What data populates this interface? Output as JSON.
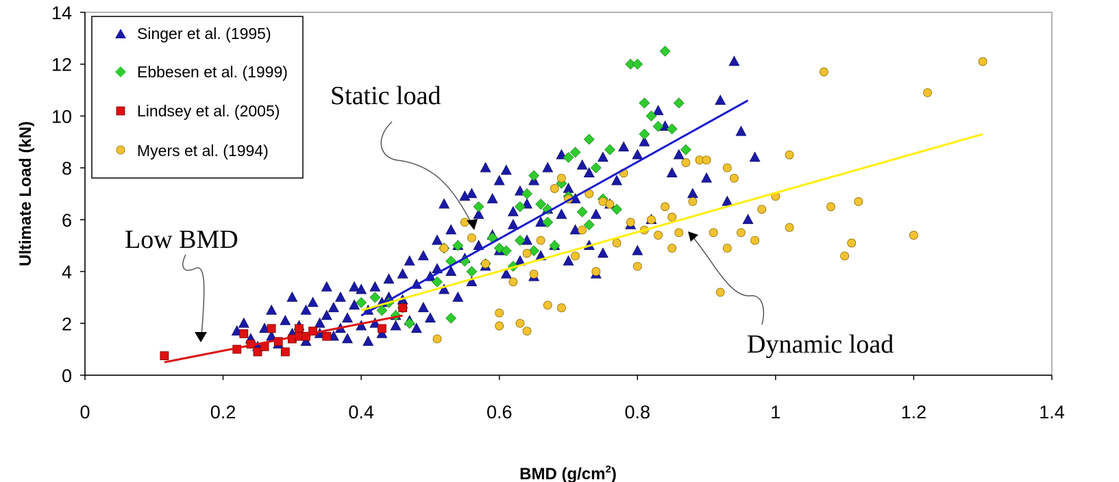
{
  "chart_data": {
    "type": "scatter",
    "xlabel": "BMD (g/cm",
    "xlabel_sup": "2",
    "xlabel_close": ")",
    "ylabel": "Ultimate Load (kN)",
    "xlim": [
      0,
      1.4
    ],
    "ylim": [
      0,
      14
    ],
    "xticks": [
      0,
      0.2,
      0.4,
      0.6,
      0.8,
      1,
      1.2,
      1.4
    ],
    "xtick_labels": [
      "0",
      "0.2",
      "0.4",
      "0.6",
      "0.8",
      "1",
      "1.2",
      "1.4"
    ],
    "yticks": [
      0,
      2,
      4,
      6,
      8,
      10,
      12,
      14
    ],
    "ytick_labels": [
      "0",
      "2",
      "4",
      "6",
      "8",
      "10",
      "12",
      "14"
    ],
    "grid": false,
    "legend_position": "top-left",
    "series": [
      {
        "name": "Singer et al. (1995)",
        "marker": "triangle",
        "color": "#1a1aa6",
        "points": [
          [
            0.22,
            1.7
          ],
          [
            0.23,
            2.0
          ],
          [
            0.24,
            1.4
          ],
          [
            0.25,
            1.1
          ],
          [
            0.26,
            1.8
          ],
          [
            0.27,
            1.5
          ],
          [
            0.27,
            2.5
          ],
          [
            0.28,
            1.2
          ],
          [
            0.29,
            2.1
          ],
          [
            0.3,
            1.6
          ],
          [
            0.3,
            3.0
          ],
          [
            0.31,
            1.9
          ],
          [
            0.32,
            2.5
          ],
          [
            0.32,
            1.3
          ],
          [
            0.33,
            2.8
          ],
          [
            0.34,
            1.6
          ],
          [
            0.34,
            2.0
          ],
          [
            0.35,
            3.4
          ],
          [
            0.35,
            2.3
          ],
          [
            0.36,
            1.5
          ],
          [
            0.36,
            2.6
          ],
          [
            0.37,
            3.0
          ],
          [
            0.37,
            1.8
          ],
          [
            0.38,
            2.2
          ],
          [
            0.38,
            1.4
          ],
          [
            0.39,
            3.4
          ],
          [
            0.39,
            2.7
          ],
          [
            0.4,
            1.9
          ],
          [
            0.4,
            3.3
          ],
          [
            0.41,
            2.5
          ],
          [
            0.41,
            1.3
          ],
          [
            0.42,
            3.4
          ],
          [
            0.42,
            2.0
          ],
          [
            0.43,
            2.8
          ],
          [
            0.43,
            1.6
          ],
          [
            0.44,
            3.0
          ],
          [
            0.44,
            3.7
          ],
          [
            0.45,
            2.3
          ],
          [
            0.45,
            1.9
          ],
          [
            0.46,
            3.9
          ],
          [
            0.46,
            2.9
          ],
          [
            0.47,
            4.4
          ],
          [
            0.47,
            2.1
          ],
          [
            0.48,
            3.5
          ],
          [
            0.48,
            1.8
          ],
          [
            0.49,
            4.6
          ],
          [
            0.49,
            2.6
          ],
          [
            0.5,
            3.8
          ],
          [
            0.5,
            2.2
          ],
          [
            0.51,
            5.2
          ],
          [
            0.51,
            4.1
          ],
          [
            0.52,
            3.3
          ],
          [
            0.52,
            6.6
          ],
          [
            0.53,
            5.6
          ],
          [
            0.53,
            4.0
          ],
          [
            0.54,
            3.0
          ],
          [
            0.54,
            5.0
          ],
          [
            0.55,
            6.9
          ],
          [
            0.55,
            4.5
          ],
          [
            0.56,
            7.0
          ],
          [
            0.56,
            3.6
          ],
          [
            0.57,
            6.2
          ],
          [
            0.57,
            5.0
          ],
          [
            0.58,
            8.0
          ],
          [
            0.58,
            4.2
          ],
          [
            0.59,
            6.8
          ],
          [
            0.59,
            5.4
          ],
          [
            0.6,
            7.5
          ],
          [
            0.6,
            4.8
          ],
          [
            0.61,
            7.9
          ],
          [
            0.61,
            3.9
          ],
          [
            0.62,
            6.3
          ],
          [
            0.62,
            5.8
          ],
          [
            0.63,
            7.1
          ],
          [
            0.63,
            4.4
          ],
          [
            0.64,
            6.6
          ],
          [
            0.64,
            5.2
          ],
          [
            0.65,
            7.5
          ],
          [
            0.65,
            3.8
          ],
          [
            0.66,
            5.9
          ],
          [
            0.66,
            4.6
          ],
          [
            0.67,
            6.4
          ],
          [
            0.67,
            8.0
          ],
          [
            0.68,
            5.0
          ],
          [
            0.69,
            8.5
          ],
          [
            0.69,
            6.2
          ],
          [
            0.7,
            7.2
          ],
          [
            0.7,
            4.4
          ],
          [
            0.71,
            5.6
          ],
          [
            0.71,
            6.8
          ],
          [
            0.72,
            8.1
          ],
          [
            0.73,
            5.0
          ],
          [
            0.73,
            7.8
          ],
          [
            0.74,
            3.9
          ],
          [
            0.74,
            6.2
          ],
          [
            0.75,
            8.4
          ],
          [
            0.75,
            4.7
          ],
          [
            0.76,
            6.6
          ],
          [
            0.77,
            7.5
          ],
          [
            0.78,
            8.8
          ],
          [
            0.79,
            5.8
          ],
          [
            0.8,
            8.5
          ],
          [
            0.81,
            9.0
          ],
          [
            0.82,
            6.0
          ],
          [
            0.83,
            10.2
          ],
          [
            0.84,
            9.6
          ],
          [
            0.85,
            7.8
          ],
          [
            0.86,
            8.5
          ],
          [
            0.88,
            7.0
          ],
          [
            0.9,
            7.6
          ],
          [
            0.92,
            10.6
          ],
          [
            0.93,
            6.7
          ],
          [
            0.94,
            12.1
          ],
          [
            0.95,
            9.4
          ],
          [
            0.96,
            6.0
          ],
          [
            0.97,
            8.4
          ],
          [
            0.8,
            4.8
          ]
        ]
      },
      {
        "name": "Ebbesen et al. (1999)",
        "marker": "diamond",
        "color": "#2ecc2e",
        "points": [
          [
            0.4,
            2.8
          ],
          [
            0.42,
            3.0
          ],
          [
            0.43,
            2.5
          ],
          [
            0.44,
            2.8
          ],
          [
            0.45,
            2.3
          ],
          [
            0.46,
            2.6
          ],
          [
            0.47,
            2.0
          ],
          [
            0.51,
            3.6
          ],
          [
            0.52,
            4.9
          ],
          [
            0.53,
            4.4
          ],
          [
            0.53,
            2.2
          ],
          [
            0.54,
            5.0
          ],
          [
            0.55,
            4.4
          ],
          [
            0.56,
            4.0
          ],
          [
            0.57,
            6.5
          ],
          [
            0.58,
            4.3
          ],
          [
            0.59,
            5.3
          ],
          [
            0.6,
            4.9
          ],
          [
            0.61,
            4.8
          ],
          [
            0.62,
            4.2
          ],
          [
            0.63,
            6.5
          ],
          [
            0.63,
            5.2
          ],
          [
            0.64,
            7.0
          ],
          [
            0.65,
            7.7
          ],
          [
            0.65,
            4.8
          ],
          [
            0.66,
            6.6
          ],
          [
            0.67,
            5.9
          ],
          [
            0.67,
            6.4
          ],
          [
            0.68,
            5.0
          ],
          [
            0.69,
            7.4
          ],
          [
            0.7,
            8.4
          ],
          [
            0.7,
            6.9
          ],
          [
            0.71,
            8.6
          ],
          [
            0.72,
            6.3
          ],
          [
            0.73,
            9.1
          ],
          [
            0.73,
            5.8
          ],
          [
            0.74,
            8.0
          ],
          [
            0.75,
            6.8
          ],
          [
            0.76,
            8.7
          ],
          [
            0.77,
            6.4
          ],
          [
            0.79,
            12.0
          ],
          [
            0.8,
            12.0
          ],
          [
            0.81,
            10.5
          ],
          [
            0.81,
            9.3
          ],
          [
            0.82,
            10.0
          ],
          [
            0.83,
            9.6
          ],
          [
            0.84,
            12.5
          ],
          [
            0.85,
            9.5
          ],
          [
            0.86,
            10.5
          ],
          [
            0.87,
            8.7
          ]
        ]
      },
      {
        "name": "Lindsey et al. (2005)",
        "marker": "square",
        "color": "#dd1111",
        "points": [
          [
            0.115,
            0.75
          ],
          [
            0.22,
            1.0
          ],
          [
            0.23,
            1.6
          ],
          [
            0.24,
            1.2
          ],
          [
            0.25,
            0.9
          ],
          [
            0.26,
            1.1
          ],
          [
            0.27,
            1.8
          ],
          [
            0.28,
            1.3
          ],
          [
            0.29,
            0.9
          ],
          [
            0.3,
            1.4
          ],
          [
            0.31,
            1.8
          ],
          [
            0.31,
            1.5
          ],
          [
            0.32,
            1.5
          ],
          [
            0.33,
            1.7
          ],
          [
            0.35,
            1.5
          ],
          [
            0.43,
            1.8
          ],
          [
            0.46,
            2.6
          ]
        ]
      },
      {
        "name": "Myers et al. (1994)",
        "marker": "circle",
        "color": "#f2c230",
        "points": [
          [
            0.51,
            1.4
          ],
          [
            0.52,
            4.9
          ],
          [
            0.55,
            5.9
          ],
          [
            0.56,
            5.3
          ],
          [
            0.58,
            4.3
          ],
          [
            0.6,
            1.9
          ],
          [
            0.6,
            2.4
          ],
          [
            0.62,
            3.6
          ],
          [
            0.63,
            2.0
          ],
          [
            0.64,
            1.7
          ],
          [
            0.64,
            4.7
          ],
          [
            0.65,
            3.9
          ],
          [
            0.66,
            5.2
          ],
          [
            0.67,
            2.7
          ],
          [
            0.68,
            7.2
          ],
          [
            0.69,
            2.6
          ],
          [
            0.69,
            7.6
          ],
          [
            0.7,
            6.8
          ],
          [
            0.71,
            4.6
          ],
          [
            0.72,
            5.6
          ],
          [
            0.73,
            7.0
          ],
          [
            0.74,
            4.0
          ],
          [
            0.75,
            6.7
          ],
          [
            0.76,
            6.6
          ],
          [
            0.77,
            5.1
          ],
          [
            0.78,
            7.8
          ],
          [
            0.79,
            5.9
          ],
          [
            0.8,
            4.2
          ],
          [
            0.81,
            5.6
          ],
          [
            0.82,
            6.0
          ],
          [
            0.83,
            5.4
          ],
          [
            0.84,
            6.5
          ],
          [
            0.85,
            6.1
          ],
          [
            0.85,
            4.9
          ],
          [
            0.86,
            5.5
          ],
          [
            0.87,
            8.2
          ],
          [
            0.88,
            6.7
          ],
          [
            0.89,
            8.3
          ],
          [
            0.9,
            8.3
          ],
          [
            0.91,
            5.5
          ],
          [
            0.92,
            3.2
          ],
          [
            0.93,
            4.9
          ],
          [
            0.93,
            8.0
          ],
          [
            0.94,
            7.6
          ],
          [
            0.95,
            5.5
          ],
          [
            0.97,
            5.2
          ],
          [
            0.98,
            6.4
          ],
          [
            1.0,
            6.9
          ],
          [
            1.02,
            8.5
          ],
          [
            1.02,
            5.7
          ],
          [
            1.07,
            11.7
          ],
          [
            1.08,
            6.5
          ],
          [
            1.1,
            4.6
          ],
          [
            1.11,
            5.1
          ],
          [
            1.12,
            6.7
          ],
          [
            1.2,
            5.4
          ],
          [
            1.22,
            10.9
          ],
          [
            1.3,
            12.1
          ]
        ]
      }
    ],
    "fit_lines": [
      {
        "name": "Singer fit",
        "color": "#1a1acc",
        "x": [
          0.4,
          0.96
        ],
        "y": [
          2.3,
          10.6
        ]
      },
      {
        "name": "Myers fit",
        "color": "#ffee00",
        "x": [
          0.4,
          1.3
        ],
        "y": [
          2.5,
          9.3
        ]
      },
      {
        "name": "Lindsey fit",
        "color": "#dd1111",
        "x": [
          0.115,
          0.46
        ],
        "y": [
          0.5,
          2.3
        ]
      }
    ],
    "annotations": [
      {
        "text": "Static load",
        "pointer_target": [
          0.57,
          5.3
        ]
      },
      {
        "text": "Low BMD",
        "pointer_target": [
          0.165,
          0.9
        ]
      },
      {
        "text": "Dynamic load",
        "pointer_target": [
          0.87,
          5.6
        ]
      }
    ]
  }
}
